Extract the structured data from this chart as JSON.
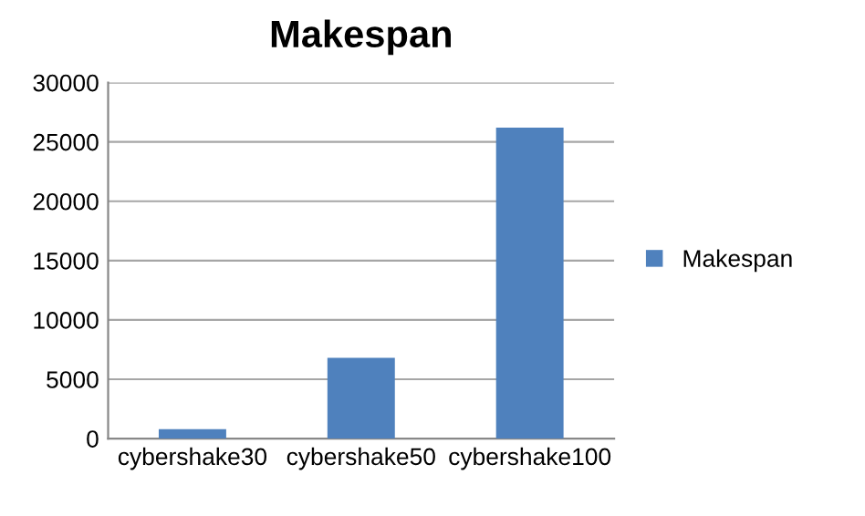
{
  "chart_data": {
    "type": "bar",
    "title": "Makespan",
    "categories": [
      "cybershake30",
      "cybershake50",
      "cybershake100"
    ],
    "series": [
      {
        "name": "Makespan",
        "color": "#4f81bd",
        "values": [
          800,
          6800,
          26200
        ]
      }
    ],
    "ylim": [
      0,
      30000
    ],
    "yticks": [
      0,
      5000,
      10000,
      15000,
      20000,
      25000,
      30000
    ],
    "grid": "y",
    "legend": "right"
  }
}
